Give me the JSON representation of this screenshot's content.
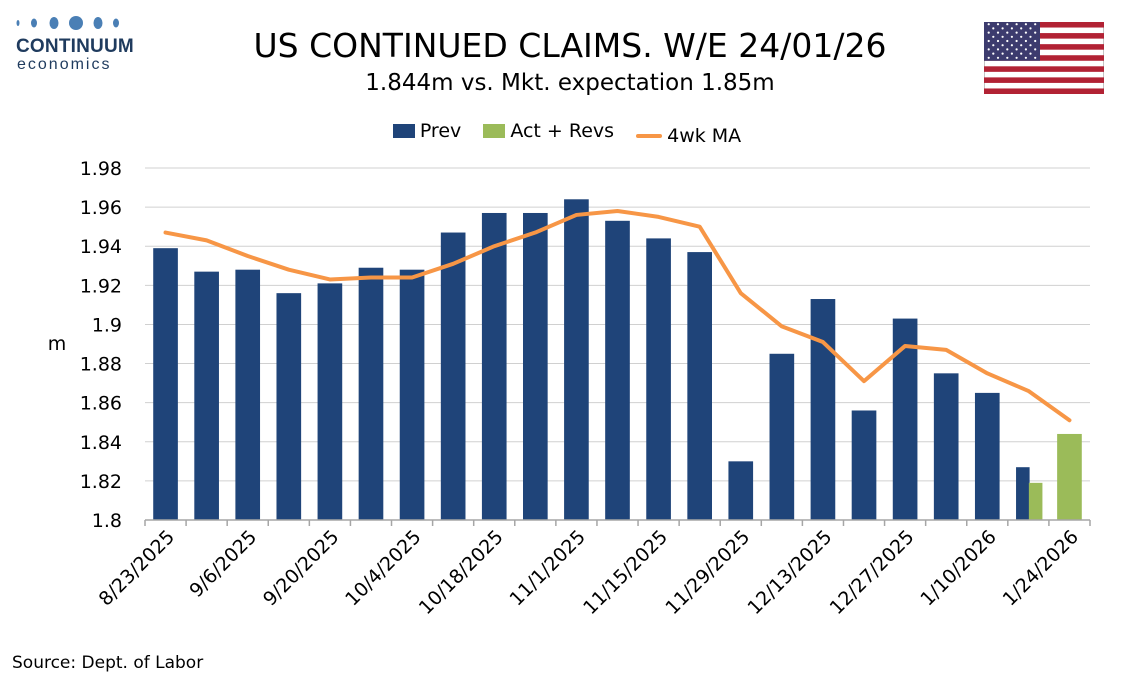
{
  "logo": {
    "brand": "CONTINUUM",
    "tagline": "economics"
  },
  "header": {
    "title": "US CONTINUED CLAIMS. W/E 24/01/26",
    "subtitle": "1.844m vs. Mkt. expectation 1.85m"
  },
  "flag": {
    "name": "us-flag-icon"
  },
  "legend": {
    "prev": "Prev",
    "act": "Act + Revs",
    "ma": "4wk MA"
  },
  "colors": {
    "prev": "#1f4479",
    "act": "#9bbb59",
    "ma": "#f79646",
    "grid": "#d0d0d0"
  },
  "source": "Source: Dept. of Labor",
  "chart_data": {
    "type": "bar",
    "title": "US CONTINUED CLAIMS. W/E 24/01/26",
    "ylabel": "m",
    "ylim": [
      1.8,
      1.98
    ],
    "yticks": [
      "1.8",
      "1.82",
      "1.84",
      "1.86",
      "1.88",
      "1.9",
      "1.92",
      "1.94",
      "1.96",
      "1.98"
    ],
    "categories": [
      "8/23/2025",
      "8/30/2025",
      "9/6/2025",
      "9/13/2025",
      "9/20/2025",
      "9/27/2025",
      "10/4/2025",
      "10/11/2025",
      "10/18/2025",
      "10/25/2025",
      "11/1/2025",
      "11/8/2025",
      "11/15/2025",
      "11/22/2025",
      "11/29/2025",
      "12/6/2025",
      "12/13/2025",
      "12/20/2025",
      "12/27/2025",
      "1/3/2026",
      "1/10/2026",
      "1/17/2026",
      "1/24/2026"
    ],
    "xtick_labels": [
      "8/23/2025",
      "9/6/2025",
      "9/20/2025",
      "10/4/2025",
      "10/18/2025",
      "11/1/2025",
      "11/15/2025",
      "11/29/2025",
      "12/13/2025",
      "12/27/2025",
      "1/10/2026",
      "1/24/2026"
    ],
    "series": [
      {
        "name": "Prev",
        "type": "bar",
        "values": [
          1.939,
          1.927,
          1.928,
          1.916,
          1.921,
          1.929,
          1.928,
          1.947,
          1.957,
          1.957,
          1.964,
          1.953,
          1.944,
          1.937,
          1.83,
          1.885,
          1.913,
          1.856,
          1.903,
          1.875,
          1.865,
          1.827,
          null
        ]
      },
      {
        "name": "Act + Revs",
        "type": "bar",
        "values": [
          null,
          null,
          null,
          null,
          null,
          null,
          null,
          null,
          null,
          null,
          null,
          null,
          null,
          null,
          null,
          null,
          null,
          null,
          null,
          null,
          null,
          1.819,
          1.844
        ]
      },
      {
        "name": "4wk MA",
        "type": "line",
        "values": [
          1.947,
          1.943,
          1.935,
          1.928,
          1.923,
          1.924,
          1.924,
          1.931,
          1.94,
          1.947,
          1.956,
          1.958,
          1.955,
          1.95,
          1.916,
          1.899,
          1.891,
          1.871,
          1.889,
          1.887,
          1.875,
          1.866,
          1.851
        ]
      }
    ]
  }
}
